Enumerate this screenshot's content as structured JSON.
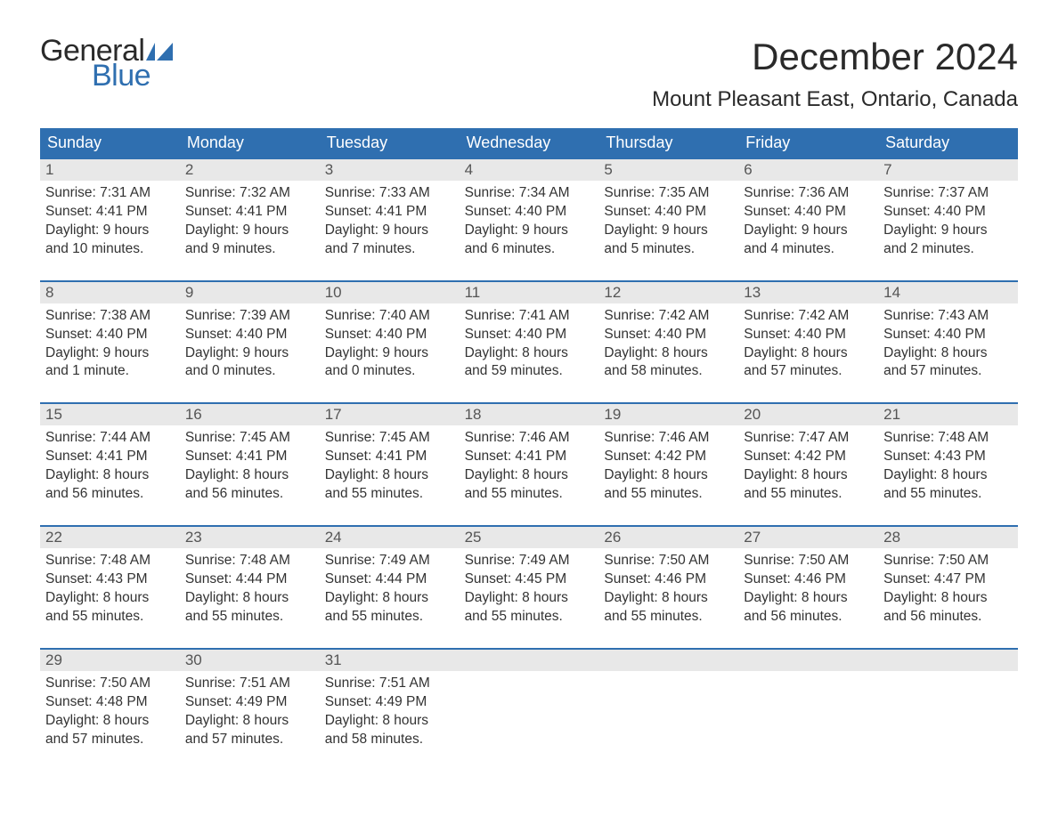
{
  "brand": {
    "word1": "General",
    "word2": "Blue",
    "word1_color": "#2a2a2a",
    "word2_color": "#2f6fb0",
    "flag_color": "#2f6fb0"
  },
  "title": "December 2024",
  "location": "Mount Pleasant East, Ontario, Canada",
  "colors": {
    "header_bg": "#2f6fb0",
    "header_text": "#ffffff",
    "daynum_bg": "#e8e8e8",
    "week_border": "#2f6fb0",
    "body_text": "#333333",
    "page_bg": "#ffffff"
  },
  "weekdays": [
    "Sunday",
    "Monday",
    "Tuesday",
    "Wednesday",
    "Thursday",
    "Friday",
    "Saturday"
  ],
  "days": [
    {
      "n": "1",
      "sunrise": "Sunrise: 7:31 AM",
      "sunset": "Sunset: 4:41 PM",
      "dl1": "Daylight: 9 hours",
      "dl2": "and 10 minutes."
    },
    {
      "n": "2",
      "sunrise": "Sunrise: 7:32 AM",
      "sunset": "Sunset: 4:41 PM",
      "dl1": "Daylight: 9 hours",
      "dl2": "and 9 minutes."
    },
    {
      "n": "3",
      "sunrise": "Sunrise: 7:33 AM",
      "sunset": "Sunset: 4:41 PM",
      "dl1": "Daylight: 9 hours",
      "dl2": "and 7 minutes."
    },
    {
      "n": "4",
      "sunrise": "Sunrise: 7:34 AM",
      "sunset": "Sunset: 4:40 PM",
      "dl1": "Daylight: 9 hours",
      "dl2": "and 6 minutes."
    },
    {
      "n": "5",
      "sunrise": "Sunrise: 7:35 AM",
      "sunset": "Sunset: 4:40 PM",
      "dl1": "Daylight: 9 hours",
      "dl2": "and 5 minutes."
    },
    {
      "n": "6",
      "sunrise": "Sunrise: 7:36 AM",
      "sunset": "Sunset: 4:40 PM",
      "dl1": "Daylight: 9 hours",
      "dl2": "and 4 minutes."
    },
    {
      "n": "7",
      "sunrise": "Sunrise: 7:37 AM",
      "sunset": "Sunset: 4:40 PM",
      "dl1": "Daylight: 9 hours",
      "dl2": "and 2 minutes."
    },
    {
      "n": "8",
      "sunrise": "Sunrise: 7:38 AM",
      "sunset": "Sunset: 4:40 PM",
      "dl1": "Daylight: 9 hours",
      "dl2": "and 1 minute."
    },
    {
      "n": "9",
      "sunrise": "Sunrise: 7:39 AM",
      "sunset": "Sunset: 4:40 PM",
      "dl1": "Daylight: 9 hours",
      "dl2": "and 0 minutes."
    },
    {
      "n": "10",
      "sunrise": "Sunrise: 7:40 AM",
      "sunset": "Sunset: 4:40 PM",
      "dl1": "Daylight: 9 hours",
      "dl2": "and 0 minutes."
    },
    {
      "n": "11",
      "sunrise": "Sunrise: 7:41 AM",
      "sunset": "Sunset: 4:40 PM",
      "dl1": "Daylight: 8 hours",
      "dl2": "and 59 minutes."
    },
    {
      "n": "12",
      "sunrise": "Sunrise: 7:42 AM",
      "sunset": "Sunset: 4:40 PM",
      "dl1": "Daylight: 8 hours",
      "dl2": "and 58 minutes."
    },
    {
      "n": "13",
      "sunrise": "Sunrise: 7:42 AM",
      "sunset": "Sunset: 4:40 PM",
      "dl1": "Daylight: 8 hours",
      "dl2": "and 57 minutes."
    },
    {
      "n": "14",
      "sunrise": "Sunrise: 7:43 AM",
      "sunset": "Sunset: 4:40 PM",
      "dl1": "Daylight: 8 hours",
      "dl2": "and 57 minutes."
    },
    {
      "n": "15",
      "sunrise": "Sunrise: 7:44 AM",
      "sunset": "Sunset: 4:41 PM",
      "dl1": "Daylight: 8 hours",
      "dl2": "and 56 minutes."
    },
    {
      "n": "16",
      "sunrise": "Sunrise: 7:45 AM",
      "sunset": "Sunset: 4:41 PM",
      "dl1": "Daylight: 8 hours",
      "dl2": "and 56 minutes."
    },
    {
      "n": "17",
      "sunrise": "Sunrise: 7:45 AM",
      "sunset": "Sunset: 4:41 PM",
      "dl1": "Daylight: 8 hours",
      "dl2": "and 55 minutes."
    },
    {
      "n": "18",
      "sunrise": "Sunrise: 7:46 AM",
      "sunset": "Sunset: 4:41 PM",
      "dl1": "Daylight: 8 hours",
      "dl2": "and 55 minutes."
    },
    {
      "n": "19",
      "sunrise": "Sunrise: 7:46 AM",
      "sunset": "Sunset: 4:42 PM",
      "dl1": "Daylight: 8 hours",
      "dl2": "and 55 minutes."
    },
    {
      "n": "20",
      "sunrise": "Sunrise: 7:47 AM",
      "sunset": "Sunset: 4:42 PM",
      "dl1": "Daylight: 8 hours",
      "dl2": "and 55 minutes."
    },
    {
      "n": "21",
      "sunrise": "Sunrise: 7:48 AM",
      "sunset": "Sunset: 4:43 PM",
      "dl1": "Daylight: 8 hours",
      "dl2": "and 55 minutes."
    },
    {
      "n": "22",
      "sunrise": "Sunrise: 7:48 AM",
      "sunset": "Sunset: 4:43 PM",
      "dl1": "Daylight: 8 hours",
      "dl2": "and 55 minutes."
    },
    {
      "n": "23",
      "sunrise": "Sunrise: 7:48 AM",
      "sunset": "Sunset: 4:44 PM",
      "dl1": "Daylight: 8 hours",
      "dl2": "and 55 minutes."
    },
    {
      "n": "24",
      "sunrise": "Sunrise: 7:49 AM",
      "sunset": "Sunset: 4:44 PM",
      "dl1": "Daylight: 8 hours",
      "dl2": "and 55 minutes."
    },
    {
      "n": "25",
      "sunrise": "Sunrise: 7:49 AM",
      "sunset": "Sunset: 4:45 PM",
      "dl1": "Daylight: 8 hours",
      "dl2": "and 55 minutes."
    },
    {
      "n": "26",
      "sunrise": "Sunrise: 7:50 AM",
      "sunset": "Sunset: 4:46 PM",
      "dl1": "Daylight: 8 hours",
      "dl2": "and 55 minutes."
    },
    {
      "n": "27",
      "sunrise": "Sunrise: 7:50 AM",
      "sunset": "Sunset: 4:46 PM",
      "dl1": "Daylight: 8 hours",
      "dl2": "and 56 minutes."
    },
    {
      "n": "28",
      "sunrise": "Sunrise: 7:50 AM",
      "sunset": "Sunset: 4:47 PM",
      "dl1": "Daylight: 8 hours",
      "dl2": "and 56 minutes."
    },
    {
      "n": "29",
      "sunrise": "Sunrise: 7:50 AM",
      "sunset": "Sunset: 4:48 PM",
      "dl1": "Daylight: 8 hours",
      "dl2": "and 57 minutes."
    },
    {
      "n": "30",
      "sunrise": "Sunrise: 7:51 AM",
      "sunset": "Sunset: 4:49 PM",
      "dl1": "Daylight: 8 hours",
      "dl2": "and 57 minutes."
    },
    {
      "n": "31",
      "sunrise": "Sunrise: 7:51 AM",
      "sunset": "Sunset: 4:49 PM",
      "dl1": "Daylight: 8 hours",
      "dl2": "and 58 minutes."
    }
  ],
  "layout": {
    "columns": 7,
    "start_weekday_index": 0,
    "trailing_blanks": 4
  }
}
